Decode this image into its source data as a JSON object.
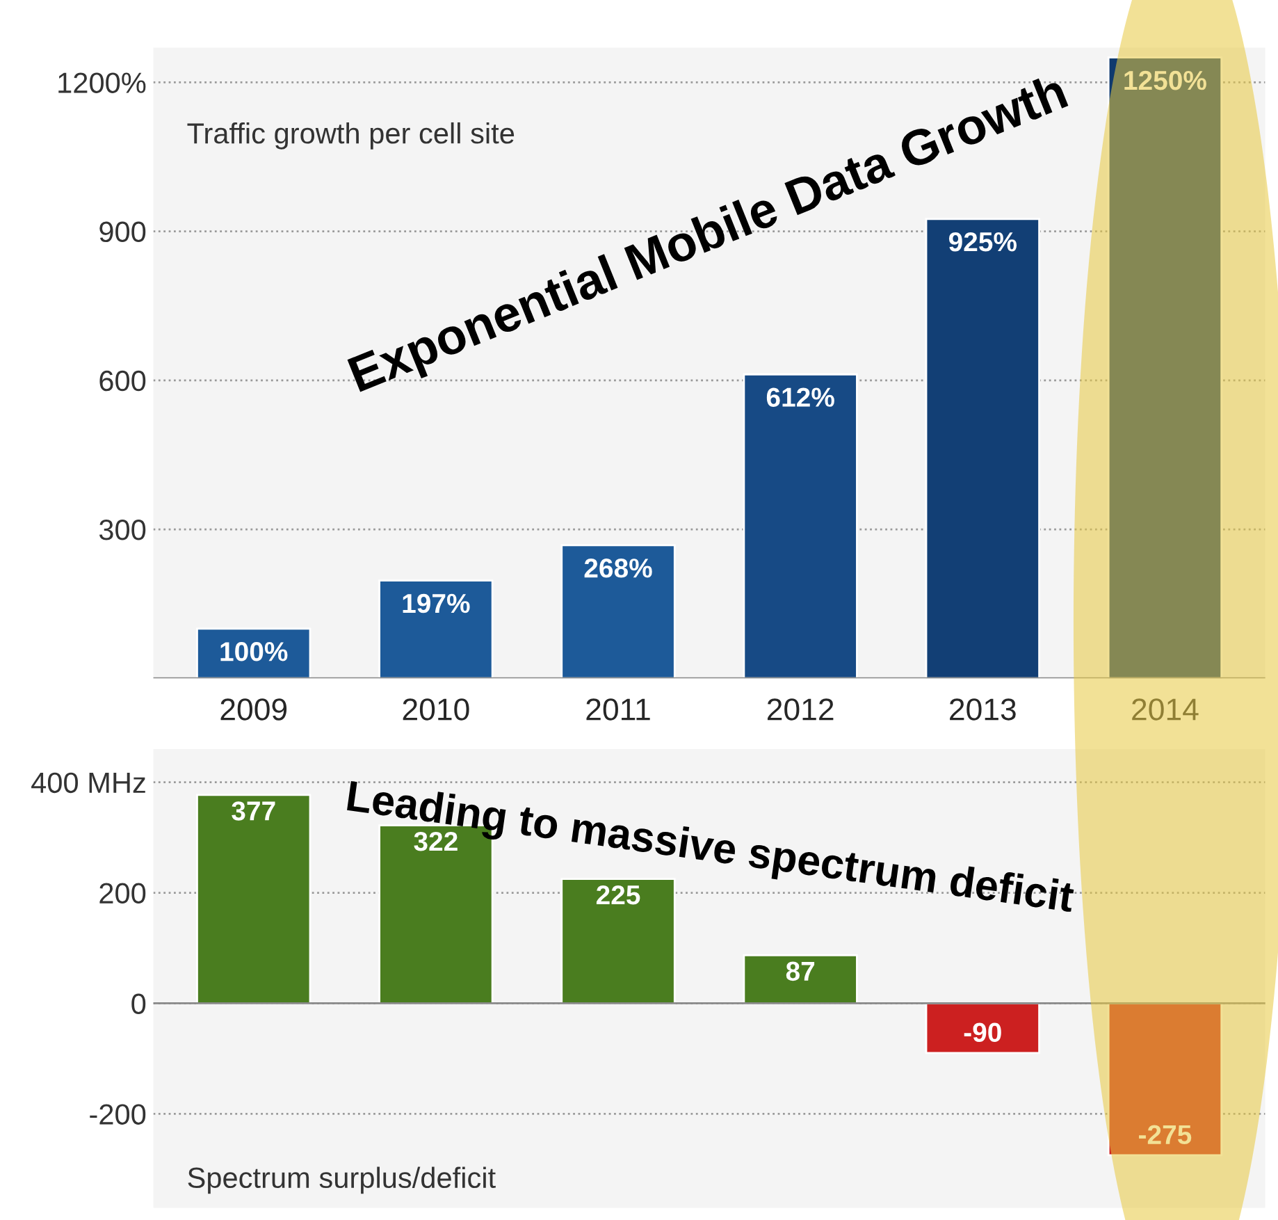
{
  "chart_data": [
    {
      "type": "bar",
      "categories": [
        "2009",
        "2010",
        "2011",
        "2012",
        "2013",
        "2014"
      ],
      "values": [
        100,
        197,
        268,
        612,
        925,
        1250
      ],
      "value_labels": [
        "100%",
        "197%",
        "268%",
        "612%",
        "925%",
        "1250%"
      ],
      "colors": [
        "#1d5a99",
        "#1d5a99",
        "#1d5a99",
        "#174a85",
        "#123f75",
        "#0f3a6e"
      ],
      "ylim": [
        0,
        1270
      ],
      "yticks": [
        300,
        600,
        900,
        {
          "value": 1200,
          "label": "1200%"
        }
      ],
      "grid": "y",
      "annotations": [
        "Traffic growth per cell site",
        "Exponential Mobile Data Growth"
      ]
    },
    {
      "type": "bar",
      "categories": [
        "2009",
        "2010",
        "2011",
        "2012",
        "2013",
        "2014"
      ],
      "values": [
        377,
        322,
        225,
        87,
        -90,
        -275
      ],
      "colors": [
        "#4a7d1f",
        "#4a7d1f",
        "#4a7d1f",
        "#4a7d1f",
        "#cc2020",
        "#cc2020"
      ],
      "data_labels": true,
      "ylim": [
        -370,
        460
      ],
      "yticks": [
        -200,
        0,
        200,
        {
          "value": 400,
          "label": "400 MHz"
        }
      ],
      "grid": "y",
      "tick_labels": "y",
      "annotations": [
        "Spectrum surplus/deficit",
        "Leading to massive spectrum deficit"
      ]
    }
  ]
}
